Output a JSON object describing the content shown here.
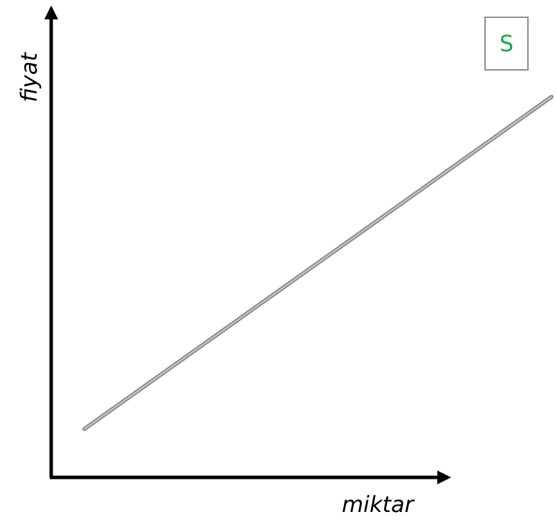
{
  "diagram": {
    "y_axis_label": "fiyat",
    "x_axis_label": "miktar",
    "curve_label": "S",
    "colors": {
      "axes": "#000000",
      "curve": "#8f8f8f",
      "curve_highlight": "#d6d6d6",
      "label_box_border": "#8a8a8a",
      "curve_label_text": "#1ea84b"
    }
  }
}
